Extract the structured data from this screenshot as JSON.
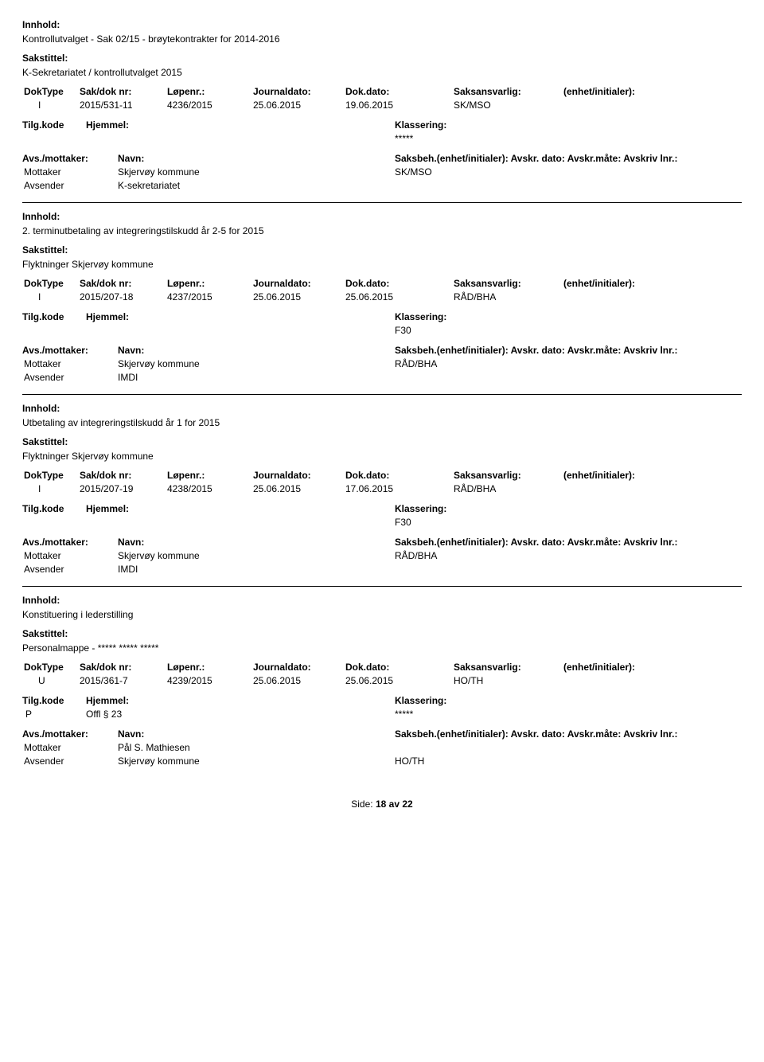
{
  "labels": {
    "innhold": "Innhold:",
    "sakstittel": "Sakstittel:",
    "dokType": "DokType",
    "sakDokNr": "Sak/dok nr:",
    "lopenr": "Løpenr.:",
    "journaldato": "Journaldato:",
    "dokDato": "Dok.dato:",
    "saksansvarlig": "Saksansvarlig:",
    "enhetInitialer": "(enhet/initialer):",
    "tilgKode": "Tilg.kode",
    "hjemmel": "Hjemmel:",
    "klassering": "Klassering:",
    "avsMottaker": "Avs./mottaker:",
    "navn": "Navn:",
    "saksbehLine": "Saksbeh.(enhet/initialer): Avskr. dato:  Avskr.måte:  Avskriv lnr.:",
    "mottaker": "Mottaker",
    "avsender": "Avsender"
  },
  "records": [
    {
      "innhold": "Kontrollutvalget - Sak 02/15 - brøytekontrakter for 2014-2016",
      "sakstittel": "K-Sekretariatet / kontrollutvalget 2015",
      "dokType": "I",
      "sakDokNr": "2015/531-11",
      "lopenr": "4236/2015",
      "journaldato": "25.06.2015",
      "dokDato": "19.06.2015",
      "saksansvarlig": "SK/MSO",
      "enhetInitialer": "",
      "tilgKode": "",
      "hjemmel": "",
      "klassering": "*****",
      "parties": [
        {
          "role": "Mottaker",
          "name": "Skjervøy kommune",
          "saksbeh": "SK/MSO"
        },
        {
          "role": "Avsender",
          "name": "K-sekretariatet",
          "saksbeh": ""
        }
      ]
    },
    {
      "innhold": "2. terminutbetaling av integreringstilskudd år 2-5 for 2015",
      "sakstittel": "Flyktninger Skjervøy kommune",
      "dokType": "I",
      "sakDokNr": "2015/207-18",
      "lopenr": "4237/2015",
      "journaldato": "25.06.2015",
      "dokDato": "25.06.2015",
      "saksansvarlig": "RÅD/BHA",
      "enhetInitialer": "",
      "tilgKode": "",
      "hjemmel": "",
      "klassering": "F30",
      "parties": [
        {
          "role": "Mottaker",
          "name": "Skjervøy kommune",
          "saksbeh": "RÅD/BHA"
        },
        {
          "role": "Avsender",
          "name": "IMDI",
          "saksbeh": ""
        }
      ]
    },
    {
      "innhold": "Utbetaling av integreringstilskudd år 1 for 2015",
      "sakstittel": "Flyktninger Skjervøy kommune",
      "dokType": "I",
      "sakDokNr": "2015/207-19",
      "lopenr": "4238/2015",
      "journaldato": "25.06.2015",
      "dokDato": "17.06.2015",
      "saksansvarlig": "RÅD/BHA",
      "enhetInitialer": "",
      "tilgKode": "",
      "hjemmel": "",
      "klassering": "F30",
      "parties": [
        {
          "role": "Mottaker",
          "name": "Skjervøy kommune",
          "saksbeh": "RÅD/BHA"
        },
        {
          "role": "Avsender",
          "name": "IMDI",
          "saksbeh": ""
        }
      ]
    },
    {
      "innhold": "Konstituering i lederstilling",
      "sakstittel": "Personalmappe - ***** ***** *****",
      "dokType": "U",
      "sakDokNr": "2015/361-7",
      "lopenr": "4239/2015",
      "journaldato": "25.06.2015",
      "dokDato": "25.06.2015",
      "saksansvarlig": "HO/TH",
      "enhetInitialer": "",
      "tilgKode": "P",
      "hjemmel": "Offl § 23",
      "klassering": "*****",
      "parties": [
        {
          "role": "Mottaker",
          "name": "Pål S. Mathiesen",
          "saksbeh": ""
        },
        {
          "role": "Avsender",
          "name": "Skjervøy kommune",
          "saksbeh": "HO/TH"
        }
      ]
    }
  ],
  "footer": {
    "sideLabel": "Side:",
    "pageCurrent": "18",
    "avLabel": "av",
    "pageTotal": "22"
  }
}
